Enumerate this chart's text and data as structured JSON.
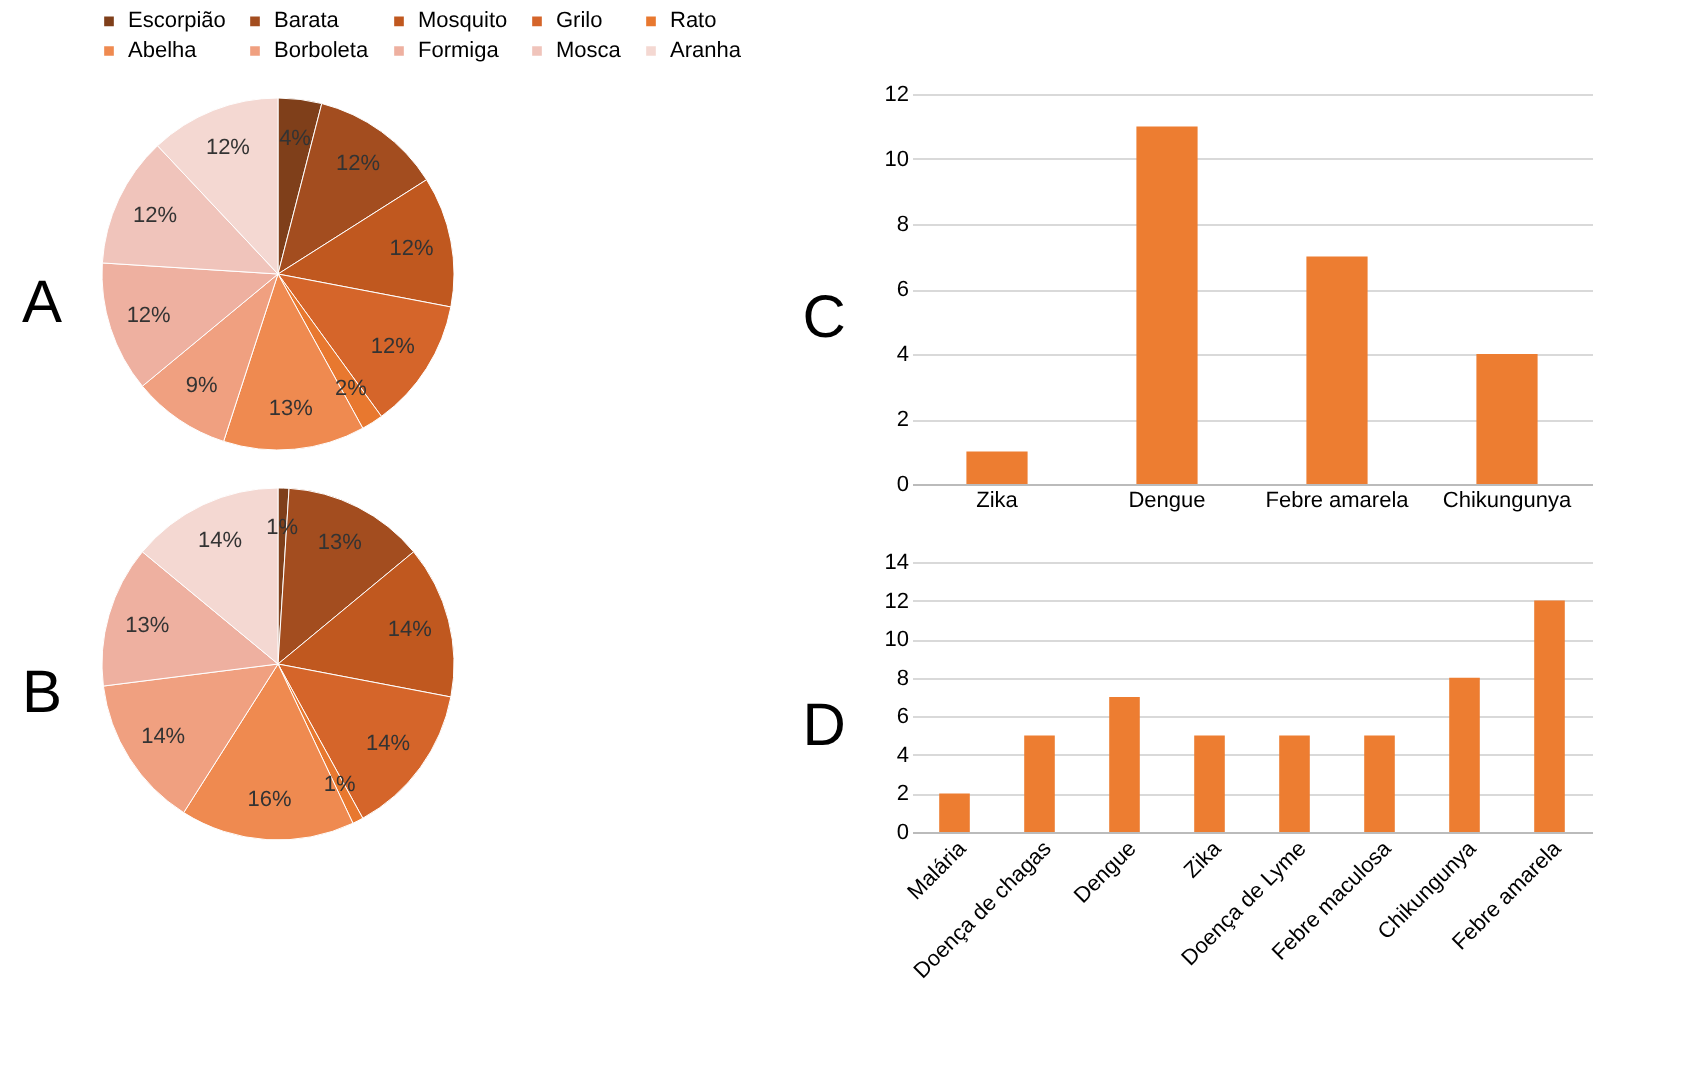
{
  "chart_data": [
    {
      "type": "pie",
      "title": "A",
      "legend": "top",
      "categories": [
        "Escorpião",
        "Barata",
        "Mosquito",
        "Grilo",
        "Rato",
        "Abelha",
        "Borboleta",
        "Formiga",
        "Mosca",
        "Aranha"
      ],
      "values": [
        4,
        12,
        12,
        12,
        2,
        13,
        9,
        12,
        12,
        12
      ],
      "value_labels": [
        "4%",
        "12%",
        "12%",
        "12%",
        "2%",
        "13%",
        "9%",
        "12%",
        "12%",
        "12%"
      ],
      "colors": [
        "#7f3f1a",
        "#a34d1f",
        "#c0581f",
        "#d5652a",
        "#e8782f",
        "#ef8a50",
        "#f0a080",
        "#eeb0a0",
        "#f0c4bb",
        "#f4d8d2"
      ]
    },
    {
      "type": "pie",
      "title": "B",
      "categories": [
        null,
        null,
        null,
        null,
        null,
        null,
        null,
        null,
        null
      ],
      "values": [
        1,
        13,
        14,
        14,
        1,
        16,
        14,
        13,
        14
      ],
      "value_labels": [
        "1%",
        "13%",
        "14%",
        "14%",
        "1%",
        "16%",
        "14%",
        "13%",
        "14%"
      ],
      "colors": [
        "#7f3f1a",
        "#a34d1f",
        "#c0581f",
        "#d5652a",
        "#e8782f",
        "#ef8a50",
        "#f0a080",
        "#eeb0a0",
        "#f4d8d2"
      ]
    },
    {
      "type": "bar",
      "title": "C",
      "categories": [
        "Zika",
        "Dengue",
        "Febre amarela",
        "Chikungunya"
      ],
      "values": [
        1,
        11,
        7,
        4
      ],
      "color": "#ed7d31",
      "ylim": [
        0,
        12
      ],
      "yticks": [
        0,
        2,
        4,
        6,
        8,
        10,
        12
      ],
      "grid": "y"
    },
    {
      "type": "bar",
      "title": "D",
      "categories": [
        "Malária",
        "Doença de chagas",
        "Dengue",
        "Zika",
        "Doença de Lyme",
        "Febre maculosa",
        "Chikungunya",
        "Febre amarela"
      ],
      "values": [
        2,
        5,
        7,
        5,
        5,
        5,
        8,
        12
      ],
      "color": "#ed7d31",
      "ylim": [
        0,
        14
      ],
      "yticks": [
        0,
        2,
        4,
        6,
        8,
        10,
        12,
        14
      ],
      "grid": "y"
    }
  ]
}
